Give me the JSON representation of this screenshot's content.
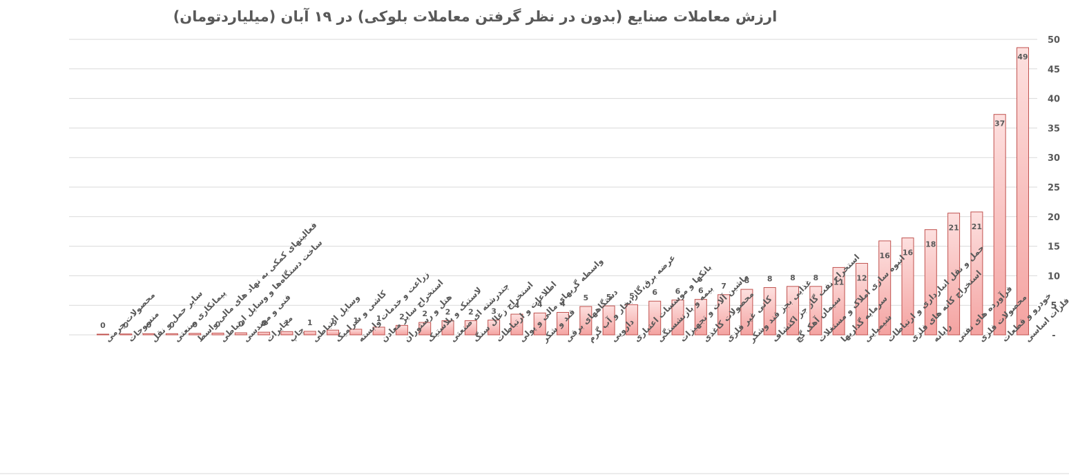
{
  "chart_data": {
    "type": "bar",
    "title": "ارزش معاملات صنایع (بدون در نظر گرفتن معاملات بلوکی) در ۱۹ آبان (میلیاردتومان)",
    "xlabel": "",
    "ylabel": "",
    "ylim": [
      0,
      50
    ],
    "y_ticks": [
      "50",
      "45",
      "40",
      "35",
      "30",
      "25",
      "20",
      "15",
      "10",
      "5",
      "-"
    ],
    "grid": true,
    "legend": "none",
    "orientation": "categories right-to-left, value axis on right",
    "bar_color_top": "#fde0df",
    "bar_color_bottom": "#f4a3a1",
    "bar_border": "#c0504d",
    "categories": [
      "محصولات چرمی",
      "منسوجات",
      "سایر حمل و نقل",
      "پیمانکاری صنعتی",
      "فعالیتهای کمکی به نهاد های مالی واسط",
      "ساخت دستگاه‌ها و وسایل ارتباطی",
      "فنی و مهندسی",
      "مخابرات",
      "چاپ",
      "وسایل ارتباطی",
      "کاشی و سرامیک",
      "زراعت و خدمات وابسته",
      "استخراج سایر معادن",
      "هتل و رستوران",
      "لاستیک و پلاستیک",
      "چندرشته ای صنعتی",
      "استخراج زغال سنگ",
      "اطلاعات و ارتباطات",
      "واسطه گریهای مالی و پولی",
      "قند و شکر",
      "دستگاههای برقی",
      "عرضه برق،گاز،بخار و آب گرم",
      "دارویی",
      "بانکها و موسسات اعتباری",
      "بیمه و بازنشستگی",
      "ماشین آلات و تجهیزات",
      "محصولات کاغذی",
      "کانی غیر فلزی",
      "غذایی بجز قند وشکر",
      "استخراج نفت گاز جز اکتشاف",
      "سیمان آهک گچ",
      "انبوه سازی املاک و مستغلات",
      "سرمایه گذاریها",
      "شیمیایی",
      "حمل و نقل انبارداری و ارتباطات",
      "استخراج کانه های فلزی",
      "رایانه",
      "فرآورده های نفتی",
      "محصولات فلزی",
      "خودرو و قطعات",
      "فلزات اساسی"
    ],
    "values": [
      0.1,
      0.15,
      0.2,
      0.2,
      0.25,
      0.3,
      0.35,
      0.45,
      0.55,
      0.6,
      0.8,
      0.95,
      1.3,
      1.6,
      2.1,
      2.4,
      2.4,
      2.5,
      3.5,
      3.7,
      3.8,
      4.8,
      4.9,
      5.1,
      5.7,
      5.9,
      6.0,
      6.8,
      7.7,
      8.0,
      8.2,
      8.2,
      11.4,
      12.1,
      15.9,
      16.4,
      17.8,
      20.6,
      20.8,
      37.3,
      48.6
    ],
    "data_labels": [
      "0",
      "0",
      "0",
      "0",
      "0",
      "0",
      "0",
      "0",
      "1",
      "1",
      "1",
      "1",
      "1",
      "2",
      "2",
      "2",
      "2",
      "3",
      "4",
      "4",
      "4",
      "5",
      "5",
      "5",
      "6",
      "6",
      "6",
      "7",
      "8",
      "8",
      "8",
      "8",
      "11",
      "12",
      "16",
      "16",
      "18",
      "21",
      "21",
      "37",
      "49"
    ]
  }
}
